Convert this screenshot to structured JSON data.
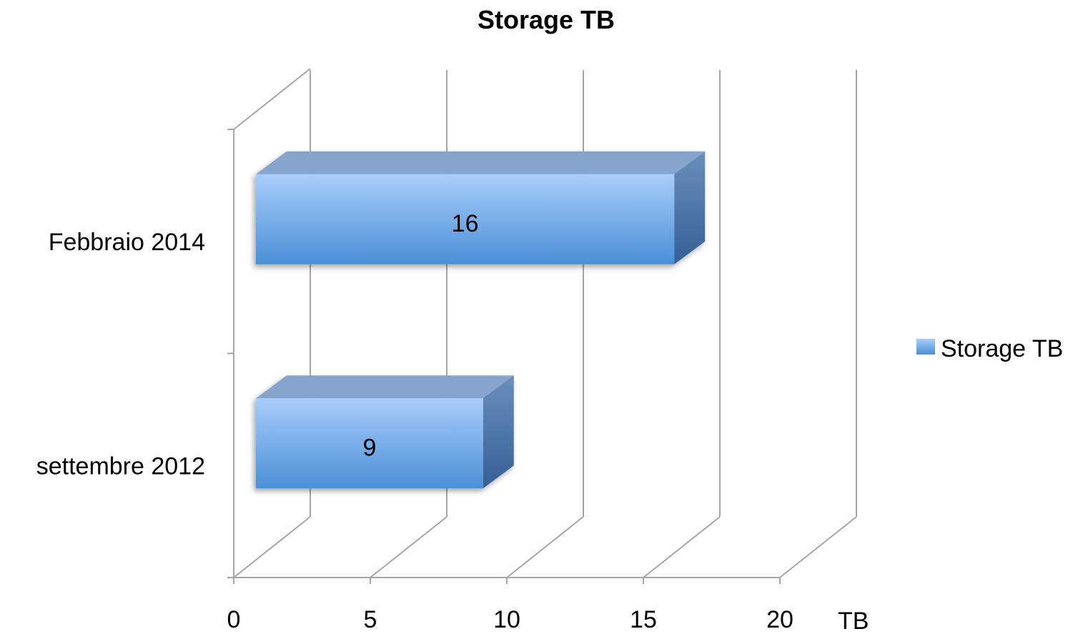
{
  "chart_data": {
    "type": "bar",
    "orientation": "horizontal",
    "style": "3d",
    "title": "Storage TB",
    "categories": [
      "Febbraio 2014",
      "settembre 2012"
    ],
    "series": [
      {
        "name": "Storage TB",
        "values": [
          16,
          9
        ]
      }
    ],
    "xlim": [
      0,
      20
    ],
    "xticks": [
      0,
      5,
      10,
      15,
      20
    ],
    "xunit": "TB",
    "grid": true,
    "legend": "right",
    "colors": {
      "bar_front_top": "#a9cdfb",
      "bar_front_bottom": "#4a8fd6",
      "bar_top": "#87a5cc",
      "bar_side_top": "#6a8fbd",
      "bar_side_bottom": "#355f95",
      "grid": "#a6a6a6"
    }
  }
}
